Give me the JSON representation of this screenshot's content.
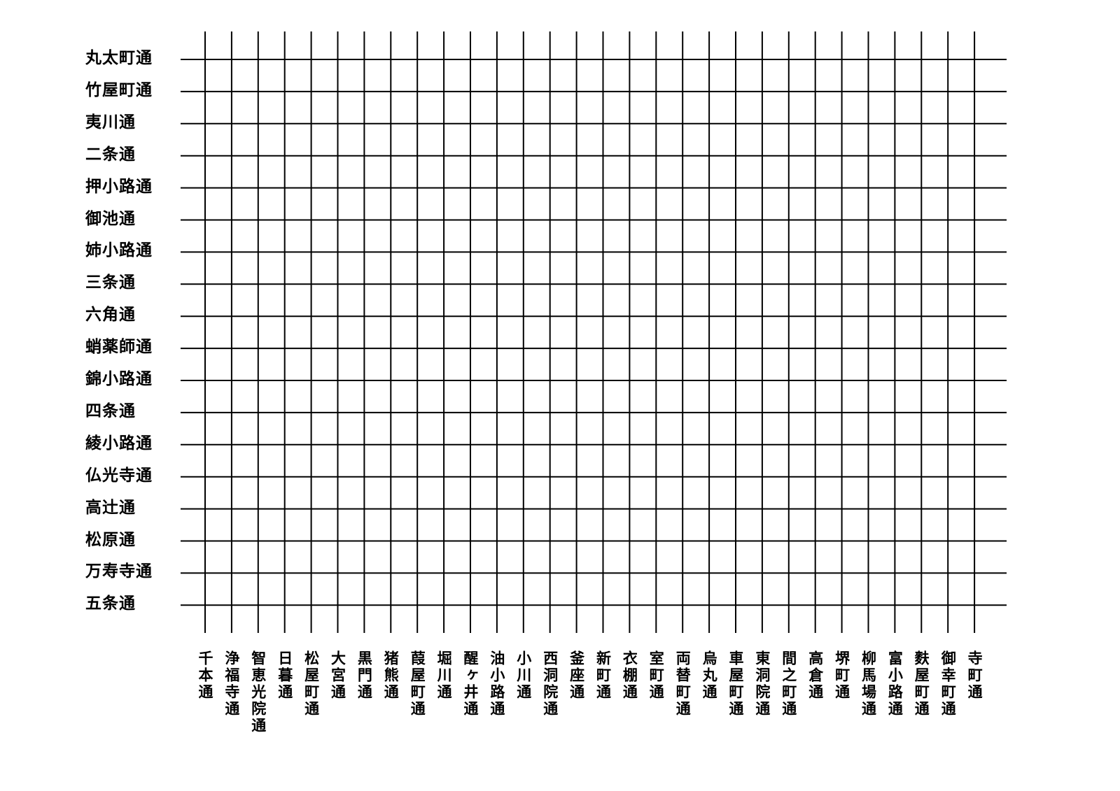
{
  "diagram": {
    "line_color": "#000000",
    "east_west_streets": [
      "丸太町通",
      "竹屋町通",
      "夷川通",
      "二条通",
      "押小路通",
      "御池通",
      "姉小路通",
      "三条通",
      "六角通",
      "蛸薬師通",
      "錦小路通",
      "四条通",
      "綾小路通",
      "仏光寺通",
      "高辻通",
      "松原通",
      "万寿寺通",
      "五条通"
    ],
    "north_south_streets": [
      "千本通",
      "浄福寺通",
      "智恵光院通",
      "日暮通",
      "松屋町通",
      "大宮通",
      "黒門通",
      "猪熊通",
      "葭屋町通",
      "堀川通",
      "醒ヶ井通",
      "油小路通",
      "小川通",
      "西洞院通",
      "釜座通",
      "新町通",
      "衣棚通",
      "室町通",
      "両替町通",
      "烏丸通",
      "車屋町通",
      "東洞院通",
      "間之町通",
      "高倉通",
      "堺町通",
      "柳馬場通",
      "富小路通",
      "麩屋町通",
      "御幸町通",
      "寺町通"
    ]
  }
}
